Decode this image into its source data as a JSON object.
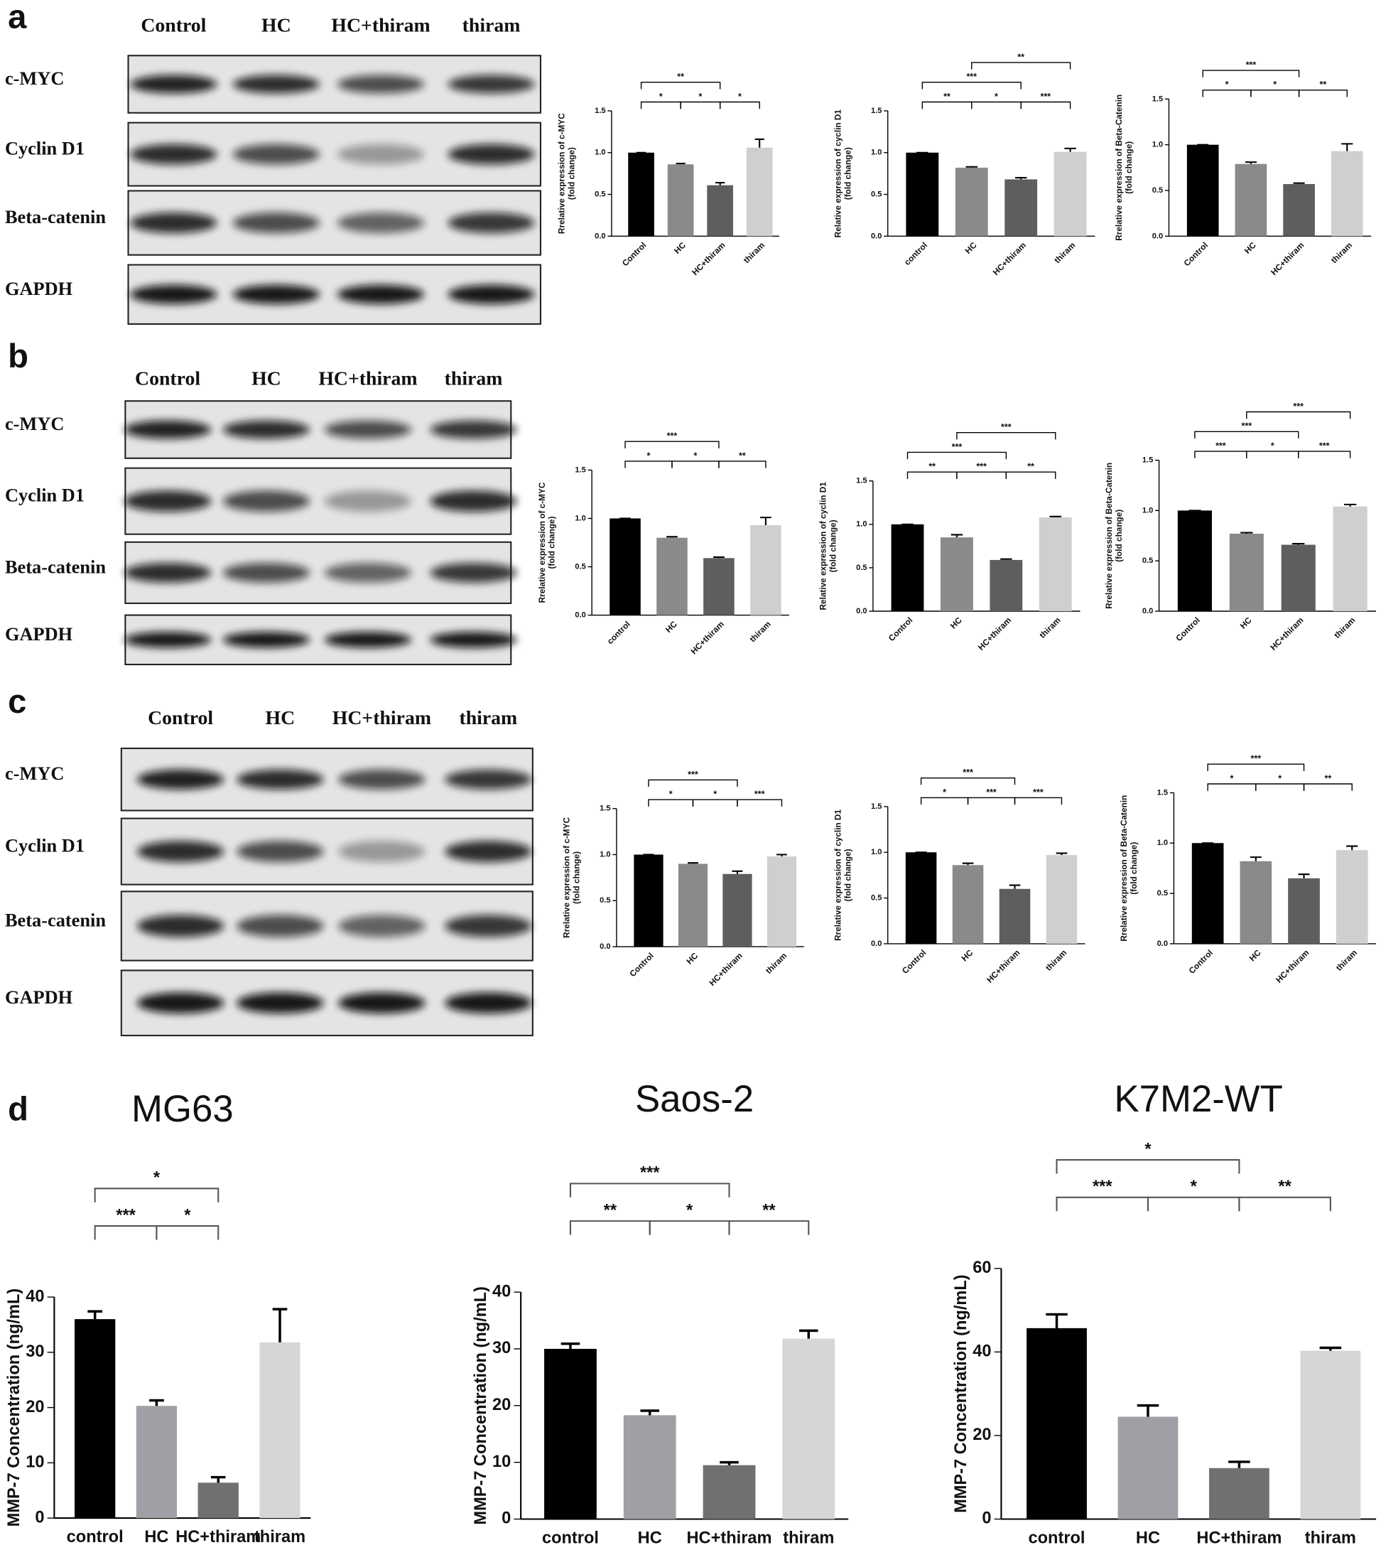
{
  "panels": [
    {
      "label": "a",
      "lanes": [
        "Control",
        "HC",
        "HC+thiram",
        "thiram"
      ],
      "rows": [
        "c-MYC",
        "Cyclin D1",
        "Beta-catenin",
        "GAPDH"
      ]
    },
    {
      "label": "b",
      "lanes": [
        "Control",
        "HC",
        "HC+thiram",
        "thiram"
      ],
      "rows": [
        "c-MYC",
        "Cyclin D1",
        "Beta-catenin",
        "GAPDH"
      ]
    },
    {
      "label": "c",
      "lanes": [
        "Control",
        "HC",
        "HC+thiram",
        "thiram"
      ],
      "rows": [
        "c-MYC",
        "Cyclin D1",
        "Beta-catenin",
        "GAPDH"
      ]
    },
    {
      "label": "d"
    }
  ],
  "chart_data": [
    {
      "type": "bar",
      "ylabel": [
        "Rrelative expression of c-MYC",
        "(fold change)"
      ],
      "categories": [
        "Control",
        "HC",
        "HC+thiram",
        "thiram"
      ],
      "values": [
        1.0,
        0.86,
        0.61,
        1.06
      ],
      "errors": [
        0,
        0.01,
        0.03,
        0.1
      ],
      "colors": [
        "#000000",
        "#8a8a8a",
        "#5e5e5e",
        "#cfcfcf"
      ],
      "ylim": [
        0,
        1.5
      ],
      "yticks": [
        {
          "value": 0,
          "label": "0.0"
        },
        {
          "value": 0.5,
          "label": "0.5"
        },
        {
          "value": 1,
          "label": "1.0"
        },
        {
          "value": 1.5,
          "label": "1.5"
        }
      ],
      "annotations": [
        {
          "from": 0,
          "to": 1,
          "text": "*"
        },
        {
          "from": 1,
          "to": 2,
          "text": "*"
        },
        {
          "from": 2,
          "to": 3,
          "text": "*"
        },
        {
          "from": 0,
          "to": 2,
          "text": "**"
        }
      ]
    },
    {
      "type": "bar",
      "ylabel": [
        "Relative expression of cyclin D1",
        "(fold change)"
      ],
      "categories": [
        "control",
        "HC",
        "HC+thiram",
        "thiram"
      ],
      "values": [
        1.0,
        0.82,
        0.68,
        1.01
      ],
      "errors": [
        0,
        0.01,
        0.02,
        0.04
      ],
      "colors": [
        "#000000",
        "#8a8a8a",
        "#5e5e5e",
        "#cfcfcf"
      ],
      "ylim": [
        0,
        1.5
      ],
      "yticks": [
        {
          "value": 0,
          "label": "0.0"
        },
        {
          "value": 0.5,
          "label": "0.5"
        },
        {
          "value": 1,
          "label": "1.0"
        },
        {
          "value": 1.5,
          "label": "1.5"
        }
      ],
      "annotations": [
        {
          "from": 0,
          "to": 1,
          "text": "**"
        },
        {
          "from": 1,
          "to": 2,
          "text": "*"
        },
        {
          "from": 2,
          "to": 3,
          "text": "***"
        },
        {
          "from": 0,
          "to": 2,
          "text": "***"
        },
        {
          "from": 1,
          "to": 3,
          "text": "**"
        }
      ]
    },
    {
      "type": "bar",
      "ylabel": [
        "Rrelative expression of Beta-Catenin",
        "(fold change)"
      ],
      "categories": [
        "Control",
        "HC",
        "HC+thiram",
        "thiram"
      ],
      "values": [
        1.0,
        0.79,
        0.57,
        0.93
      ],
      "errors": [
        0,
        0.02,
        0.01,
        0.08
      ],
      "colors": [
        "#000000",
        "#8a8a8a",
        "#5e5e5e",
        "#cfcfcf"
      ],
      "ylim": [
        0,
        1.5
      ],
      "yticks": [
        {
          "value": 0,
          "label": "0.0"
        },
        {
          "value": 0.5,
          "label": "0.5"
        },
        {
          "value": 1,
          "label": "1.0"
        },
        {
          "value": 1.5,
          "label": "1.5"
        }
      ],
      "annotations": [
        {
          "from": 0,
          "to": 1,
          "text": "*"
        },
        {
          "from": 1,
          "to": 2,
          "text": "*"
        },
        {
          "from": 2,
          "to": 3,
          "text": "**"
        },
        {
          "from": 0,
          "to": 2,
          "text": "***"
        }
      ]
    },
    {
      "type": "bar",
      "ylabel": [
        "Rrelative expression of c-MYC",
        "(fold change)"
      ],
      "categories": [
        "control",
        "HC",
        "HC+thiram",
        "thiram"
      ],
      "values": [
        1.0,
        0.8,
        0.59,
        0.93
      ],
      "errors": [
        0,
        0.01,
        0.01,
        0.08
      ],
      "colors": [
        "#000000",
        "#8a8a8a",
        "#5e5e5e",
        "#cfcfcf"
      ],
      "ylim": [
        0,
        1.5
      ],
      "yticks": [
        {
          "value": 0,
          "label": "0.0"
        },
        {
          "value": 0.5,
          "label": "0.5"
        },
        {
          "value": 1,
          "label": "1.0"
        },
        {
          "value": 1.5,
          "label": "1.5"
        }
      ],
      "annotations": [
        {
          "from": 0,
          "to": 1,
          "text": "*"
        },
        {
          "from": 1,
          "to": 2,
          "text": "*"
        },
        {
          "from": 2,
          "to": 3,
          "text": "**"
        },
        {
          "from": 0,
          "to": 2,
          "text": "***"
        }
      ]
    },
    {
      "type": "bar",
      "ylabel": [
        "Relative expression of cyclin D1",
        "(fold change)"
      ],
      "categories": [
        "Control",
        "HC",
        "HC+thiram",
        "thiram"
      ],
      "values": [
        1.0,
        0.85,
        0.59,
        1.08
      ],
      "errors": [
        0,
        0.03,
        0.01,
        0.01
      ],
      "colors": [
        "#000000",
        "#8a8a8a",
        "#5e5e5e",
        "#cfcfcf"
      ],
      "ylim": [
        0,
        1.5
      ],
      "yticks": [
        {
          "value": 0,
          "label": "0.0"
        },
        {
          "value": 0.5,
          "label": "0.5"
        },
        {
          "value": 1,
          "label": "1.0"
        },
        {
          "value": 1.5,
          "label": "1.5"
        }
      ],
      "annotations": [
        {
          "from": 0,
          "to": 1,
          "text": "**"
        },
        {
          "from": 1,
          "to": 2,
          "text": "***"
        },
        {
          "from": 2,
          "to": 3,
          "text": "**"
        },
        {
          "from": 0,
          "to": 2,
          "text": "***"
        },
        {
          "from": 1,
          "to": 3,
          "text": "***"
        }
      ]
    },
    {
      "type": "bar",
      "ylabel": [
        "Rrelative expression of Beta-Catenin",
        "(fold change)"
      ],
      "categories": [
        "Control",
        "HC",
        "HC+thiram",
        "thiram"
      ],
      "values": [
        1.0,
        0.77,
        0.66,
        1.04
      ],
      "errors": [
        0,
        0.01,
        0.01,
        0.02
      ],
      "colors": [
        "#000000",
        "#8a8a8a",
        "#5e5e5e",
        "#cfcfcf"
      ],
      "ylim": [
        0,
        1.5
      ],
      "yticks": [
        {
          "value": 0,
          "label": "0.0"
        },
        {
          "value": 0.5,
          "label": "0.5"
        },
        {
          "value": 1,
          "label": "1.0"
        },
        {
          "value": 1.5,
          "label": "1.5"
        }
      ],
      "annotations": [
        {
          "from": 0,
          "to": 1,
          "text": "***"
        },
        {
          "from": 1,
          "to": 2,
          "text": "*"
        },
        {
          "from": 2,
          "to": 3,
          "text": "***"
        },
        {
          "from": 0,
          "to": 2,
          "text": "***"
        },
        {
          "from": 1,
          "to": 3,
          "text": "***"
        }
      ]
    },
    {
      "type": "bar",
      "ylabel": [
        "Rrelative expression of c-MYC",
        "(fold change)"
      ],
      "categories": [
        "Control",
        "HC",
        "HC+thiram",
        "thiram"
      ],
      "values": [
        1.0,
        0.9,
        0.79,
        0.98
      ],
      "errors": [
        0,
        0.01,
        0.03,
        0.02
      ],
      "colors": [
        "#000000",
        "#8a8a8a",
        "#5e5e5e",
        "#cfcfcf"
      ],
      "ylim": [
        0,
        1.5
      ],
      "yticks": [
        {
          "value": 0,
          "label": "0.0"
        },
        {
          "value": 0.5,
          "label": "0.5"
        },
        {
          "value": 1,
          "label": "1.0"
        },
        {
          "value": 1.5,
          "label": "1.5"
        }
      ],
      "annotations": [
        {
          "from": 0,
          "to": 1,
          "text": "*"
        },
        {
          "from": 1,
          "to": 2,
          "text": "*"
        },
        {
          "from": 2,
          "to": 3,
          "text": "***"
        },
        {
          "from": 0,
          "to": 2,
          "text": "***"
        }
      ]
    },
    {
      "type": "bar",
      "ylabel": [
        "Rrelative expression of cyclin D1",
        "(fold change)"
      ],
      "categories": [
        "Control",
        "HC",
        "HC+thiram",
        "thiram"
      ],
      "values": [
        1.0,
        0.86,
        0.6,
        0.97
      ],
      "errors": [
        0,
        0.02,
        0.04,
        0.02
      ],
      "colors": [
        "#000000",
        "#8a8a8a",
        "#5e5e5e",
        "#cfcfcf"
      ],
      "ylim": [
        0,
        1.5
      ],
      "yticks": [
        {
          "value": 0,
          "label": "0.0"
        },
        {
          "value": 0.5,
          "label": "0.5"
        },
        {
          "value": 1,
          "label": "1.0"
        },
        {
          "value": 1.5,
          "label": "1.5"
        }
      ],
      "annotations": [
        {
          "from": 0,
          "to": 1,
          "text": "*"
        },
        {
          "from": 1,
          "to": 2,
          "text": "***"
        },
        {
          "from": 2,
          "to": 3,
          "text": "***"
        },
        {
          "from": 0,
          "to": 2,
          "text": "***"
        }
      ]
    },
    {
      "type": "bar",
      "ylabel": [
        "Rrelative expression of Beta-Catenin",
        "(fold change)"
      ],
      "categories": [
        "Control",
        "HC",
        "HC+thiram",
        "thiram"
      ],
      "values": [
        1.0,
        0.82,
        0.65,
        0.93
      ],
      "errors": [
        0,
        0.04,
        0.04,
        0.04
      ],
      "colors": [
        "#000000",
        "#8a8a8a",
        "#5e5e5e",
        "#cfcfcf"
      ],
      "ylim": [
        0,
        1.5
      ],
      "yticks": [
        {
          "value": 0,
          "label": "0.0"
        },
        {
          "value": 0.5,
          "label": "0.5"
        },
        {
          "value": 1,
          "label": "1.0"
        },
        {
          "value": 1.5,
          "label": "1.5"
        }
      ],
      "annotations": [
        {
          "from": 0,
          "to": 1,
          "text": "*"
        },
        {
          "from": 1,
          "to": 2,
          "text": "*"
        },
        {
          "from": 2,
          "to": 3,
          "text": "**"
        },
        {
          "from": 0,
          "to": 2,
          "text": "***"
        }
      ]
    },
    {
      "type": "bar",
      "title": "MG63",
      "ylabel": [
        "MMP-7 Concentration (ng/mL)"
      ],
      "categories": [
        "control",
        "HC",
        "HC+thiram",
        "thiram"
      ],
      "values": [
        36,
        20.3,
        6.4,
        31.8
      ],
      "errors": [
        1.4,
        1.0,
        1.0,
        6.0
      ],
      "colors": [
        "#000000",
        "#9f9fa6",
        "#707070",
        "#d6d6d6"
      ],
      "ylim": [
        0,
        40
      ],
      "yticks": [
        0,
        10,
        20,
        30,
        40
      ],
      "annotations": [
        {
          "from": 0,
          "to": 1,
          "text": "***"
        },
        {
          "from": 1,
          "to": 2,
          "text": "*"
        },
        {
          "from": 0,
          "to": 2,
          "text": "*"
        }
      ]
    },
    {
      "type": "bar",
      "title": "Saos-2",
      "ylabel": [
        "MMP-7 Concentration (ng/mL)"
      ],
      "categories": [
        "control",
        "HC",
        "HC+thiram",
        "thiram"
      ],
      "values": [
        30,
        18.3,
        9.5,
        31.8
      ],
      "errors": [
        0.9,
        0.8,
        0.5,
        1.4
      ],
      "colors": [
        "#000000",
        "#9f9fa6",
        "#707070",
        "#d6d6d6"
      ],
      "ylim": [
        0,
        40
      ],
      "yticks": [
        0,
        10,
        20,
        30,
        40
      ],
      "annotations": [
        {
          "from": 0,
          "to": 1,
          "text": "**"
        },
        {
          "from": 1,
          "to": 2,
          "text": "*"
        },
        {
          "from": 2,
          "to": 3,
          "text": "**"
        },
        {
          "from": 0,
          "to": 2,
          "text": "***"
        }
      ]
    },
    {
      "type": "bar",
      "title": "K7M2-WT",
      "ylabel": [
        "MMP-7 Concentration (ng/mL)"
      ],
      "categories": [
        "control",
        "HC",
        "HC+thiram",
        "thiram"
      ],
      "values": [
        45.7,
        24.5,
        12.2,
        40.3
      ],
      "errors": [
        3.3,
        2.7,
        1.5,
        0.7
      ],
      "colors": [
        "#000000",
        "#9f9fa6",
        "#707070",
        "#d6d6d6"
      ],
      "ylim": [
        0,
        60
      ],
      "yticks": [
        0,
        20,
        40,
        60
      ],
      "annotations": [
        {
          "from": 0,
          "to": 1,
          "text": "***"
        },
        {
          "from": 1,
          "to": 2,
          "text": "*"
        },
        {
          "from": 2,
          "to": 3,
          "text": "**"
        },
        {
          "from": 0,
          "to": 2,
          "text": "*"
        }
      ]
    }
  ]
}
